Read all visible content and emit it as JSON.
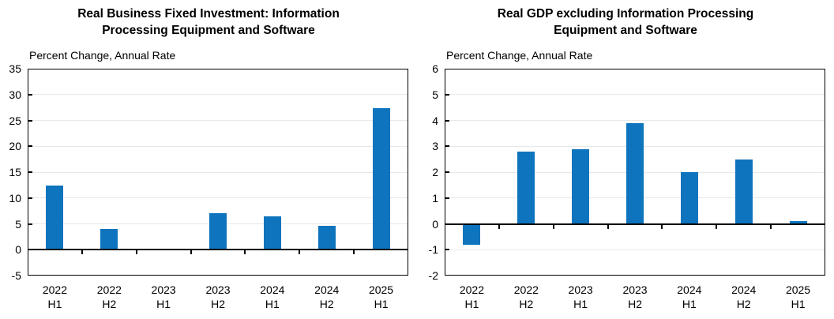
{
  "figure": {
    "background": "#ffffff",
    "frame_color": "#000000",
    "gridline_color": "#e8e8e8"
  },
  "chart_data": [
    {
      "type": "bar",
      "title": "Real Business Fixed Investment: Information Processing Equipment and Software",
      "title_lines": [
        "Real Business Fixed Investment: Information",
        "Processing Equipment and Software"
      ],
      "subtitle": "Percent Change, Annual Rate",
      "ylabel": "Percent Change, Annual Rate",
      "xlabel": "",
      "categories": [
        "2022 H1",
        "2022 H2",
        "2023 H1",
        "2023 H2",
        "2024 H1",
        "2024 H2",
        "2025 H1"
      ],
      "values": [
        12.4,
        4.0,
        -0.1,
        7.0,
        6.4,
        4.6,
        27.4
      ],
      "ylim": [
        -5,
        35
      ],
      "ytick_step": 5,
      "yticks": [
        35,
        30,
        25,
        20,
        15,
        10,
        5,
        0,
        -5
      ],
      "grid": true,
      "legend_position": "none",
      "bar_color": "#0e74bd"
    },
    {
      "type": "bar",
      "title": "Real GDP excluding Information Processing Equipment and Software",
      "title_lines": [
        "Real GDP excluding Information Processing",
        "Equipment and Software"
      ],
      "subtitle": "Percent Change, Annual Rate",
      "ylabel": "Percent Change, Annual Rate",
      "xlabel": "",
      "categories": [
        "2022 H1",
        "2022 H2",
        "2023 H1",
        "2023 H2",
        "2024 H1",
        "2024 H2",
        "2025 H1"
      ],
      "values": [
        -0.8,
        2.8,
        2.9,
        3.9,
        2.0,
        2.5,
        0.1
      ],
      "ylim": [
        -2,
        6
      ],
      "ytick_step": 1,
      "yticks": [
        6,
        5,
        4,
        3,
        2,
        1,
        0,
        -1,
        -2
      ],
      "grid": true,
      "legend_position": "none",
      "bar_color": "#0e74bd"
    }
  ]
}
